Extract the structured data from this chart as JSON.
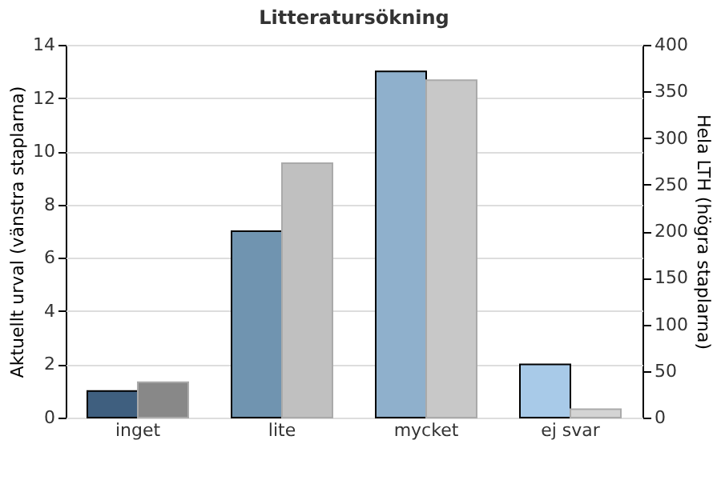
{
  "chart_data": {
    "type": "bar",
    "title": "Litteratursökning",
    "categories": [
      "inget",
      "lite",
      "mycket",
      "ej svar"
    ],
    "ylabel": "Aktuellt urval (vänstra staplarna)",
    "y2label": "Hela LTH (högra staplarna)",
    "ylim": [
      0,
      14
    ],
    "yticks": [
      0,
      2,
      4,
      6,
      8,
      10,
      12,
      14
    ],
    "y2lim": [
      0,
      400
    ],
    "y2ticks": [
      0,
      50,
      100,
      150,
      200,
      250,
      300,
      350,
      400
    ],
    "series": [
      {
        "colors": [
          "#3f5f7f",
          "#7094b0",
          "#8fb0cc",
          "#a8cae8"
        ],
        "values": [
          1,
          7,
          13,
          2
        ]
      },
      {
        "axis": "y2",
        "colors": [
          "#888888",
          "#c0c0c0",
          "#c8c8c8",
          "#d4d4d4"
        ],
        "values": [
          38,
          273,
          362,
          9
        ]
      }
    ],
    "grid": "y"
  }
}
